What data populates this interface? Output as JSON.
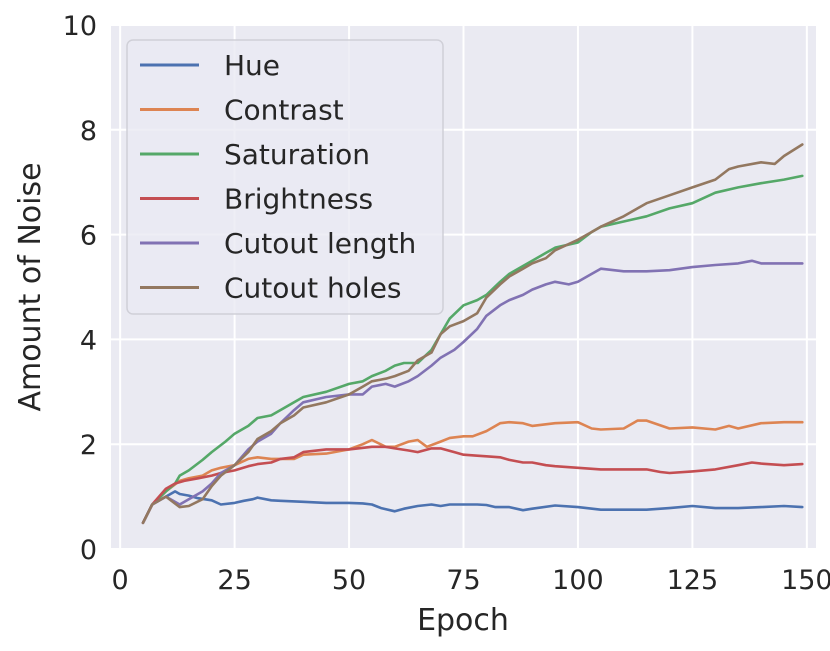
{
  "chart_data": {
    "type": "line",
    "title": "",
    "xlabel": "Epoch",
    "ylabel": "Amount of Noise",
    "xlim": [
      -2,
      152
    ],
    "ylim": [
      0,
      10
    ],
    "xticks": [
      0,
      25,
      50,
      75,
      100,
      125,
      150
    ],
    "yticks": [
      0,
      2,
      4,
      6,
      8,
      10
    ],
    "xtick_labels": [
      "0",
      "25",
      "50",
      "75",
      "100",
      "125",
      "150"
    ],
    "ytick_labels": [
      "0",
      "2",
      "4",
      "6",
      "8",
      "10"
    ],
    "grid": true,
    "background": "#eaeaf2",
    "legend_position": "top-left",
    "series": [
      {
        "name": "Hue",
        "color": "#4c72b0",
        "points": [
          [
            5,
            0.5
          ],
          [
            7,
            0.85
          ],
          [
            10,
            1.0
          ],
          [
            12,
            1.1
          ],
          [
            13,
            1.05
          ],
          [
            15,
            1.02
          ],
          [
            17,
            0.97
          ],
          [
            20,
            0.93
          ],
          [
            22,
            0.85
          ],
          [
            25,
            0.88
          ],
          [
            27,
            0.92
          ],
          [
            29,
            0.95
          ],
          [
            30,
            0.98
          ],
          [
            33,
            0.93
          ],
          [
            35,
            0.92
          ],
          [
            40,
            0.9
          ],
          [
            45,
            0.88
          ],
          [
            50,
            0.88
          ],
          [
            53,
            0.87
          ],
          [
            55,
            0.85
          ],
          [
            57,
            0.78
          ],
          [
            60,
            0.72
          ],
          [
            62,
            0.77
          ],
          [
            65,
            0.82
          ],
          [
            68,
            0.85
          ],
          [
            70,
            0.82
          ],
          [
            72,
            0.85
          ],
          [
            75,
            0.85
          ],
          [
            78,
            0.85
          ],
          [
            80,
            0.84
          ],
          [
            82,
            0.8
          ],
          [
            85,
            0.8
          ],
          [
            88,
            0.74
          ],
          [
            90,
            0.77
          ],
          [
            95,
            0.83
          ],
          [
            100,
            0.8
          ],
          [
            105,
            0.75
          ],
          [
            110,
            0.75
          ],
          [
            115,
            0.75
          ],
          [
            120,
            0.78
          ],
          [
            125,
            0.82
          ],
          [
            130,
            0.78
          ],
          [
            135,
            0.78
          ],
          [
            140,
            0.8
          ],
          [
            145,
            0.82
          ],
          [
            149,
            0.8
          ]
        ]
      },
      {
        "name": "Contrast",
        "color": "#dd8452",
        "points": [
          [
            5,
            0.5
          ],
          [
            7,
            0.85
          ],
          [
            10,
            1.1
          ],
          [
            13,
            1.3
          ],
          [
            15,
            1.35
          ],
          [
            18,
            1.4
          ],
          [
            20,
            1.5
          ],
          [
            22,
            1.55
          ],
          [
            25,
            1.6
          ],
          [
            28,
            1.72
          ],
          [
            30,
            1.75
          ],
          [
            33,
            1.72
          ],
          [
            35,
            1.72
          ],
          [
            38,
            1.72
          ],
          [
            40,
            1.8
          ],
          [
            45,
            1.82
          ],
          [
            50,
            1.9
          ],
          [
            53,
            2.0
          ],
          [
            55,
            2.08
          ],
          [
            58,
            1.95
          ],
          [
            60,
            1.95
          ],
          [
            63,
            2.05
          ],
          [
            65,
            2.08
          ],
          [
            67,
            1.95
          ],
          [
            70,
            2.05
          ],
          [
            72,
            2.12
          ],
          [
            75,
            2.15
          ],
          [
            77,
            2.15
          ],
          [
            80,
            2.25
          ],
          [
            83,
            2.4
          ],
          [
            85,
            2.42
          ],
          [
            88,
            2.4
          ],
          [
            90,
            2.35
          ],
          [
            95,
            2.4
          ],
          [
            100,
            2.42
          ],
          [
            103,
            2.3
          ],
          [
            105,
            2.28
          ],
          [
            110,
            2.3
          ],
          [
            113,
            2.45
          ],
          [
            115,
            2.45
          ],
          [
            120,
            2.3
          ],
          [
            125,
            2.32
          ],
          [
            130,
            2.28
          ],
          [
            133,
            2.35
          ],
          [
            135,
            2.3
          ],
          [
            140,
            2.4
          ],
          [
            145,
            2.42
          ],
          [
            149,
            2.42
          ]
        ]
      },
      {
        "name": "Saturation",
        "color": "#55a868",
        "points": [
          [
            5,
            0.5
          ],
          [
            7,
            0.85
          ],
          [
            10,
            1.1
          ],
          [
            12,
            1.25
          ],
          [
            13,
            1.4
          ],
          [
            15,
            1.5
          ],
          [
            18,
            1.7
          ],
          [
            20,
            1.85
          ],
          [
            23,
            2.05
          ],
          [
            25,
            2.2
          ],
          [
            28,
            2.35
          ],
          [
            30,
            2.5
          ],
          [
            33,
            2.55
          ],
          [
            35,
            2.65
          ],
          [
            38,
            2.8
          ],
          [
            40,
            2.9
          ],
          [
            45,
            3.0
          ],
          [
            50,
            3.15
          ],
          [
            53,
            3.2
          ],
          [
            55,
            3.3
          ],
          [
            58,
            3.4
          ],
          [
            60,
            3.5
          ],
          [
            62,
            3.55
          ],
          [
            65,
            3.55
          ],
          [
            68,
            3.8
          ],
          [
            70,
            4.1
          ],
          [
            72,
            4.4
          ],
          [
            75,
            4.65
          ],
          [
            78,
            4.75
          ],
          [
            80,
            4.85
          ],
          [
            83,
            5.1
          ],
          [
            85,
            5.25
          ],
          [
            88,
            5.4
          ],
          [
            90,
            5.5
          ],
          [
            93,
            5.65
          ],
          [
            95,
            5.75
          ],
          [
            100,
            5.85
          ],
          [
            103,
            6.05
          ],
          [
            105,
            6.15
          ],
          [
            110,
            6.25
          ],
          [
            115,
            6.35
          ],
          [
            120,
            6.5
          ],
          [
            125,
            6.6
          ],
          [
            130,
            6.8
          ],
          [
            135,
            6.9
          ],
          [
            140,
            6.98
          ],
          [
            145,
            7.05
          ],
          [
            149,
            7.12
          ]
        ]
      },
      {
        "name": "Brightness",
        "color": "#c44e52",
        "points": [
          [
            5,
            0.5
          ],
          [
            7,
            0.85
          ],
          [
            10,
            1.15
          ],
          [
            12,
            1.25
          ],
          [
            14,
            1.3
          ],
          [
            17,
            1.35
          ],
          [
            20,
            1.4
          ],
          [
            22,
            1.45
          ],
          [
            25,
            1.5
          ],
          [
            28,
            1.58
          ],
          [
            30,
            1.62
          ],
          [
            33,
            1.65
          ],
          [
            35,
            1.72
          ],
          [
            38,
            1.75
          ],
          [
            40,
            1.85
          ],
          [
            45,
            1.9
          ],
          [
            50,
            1.9
          ],
          [
            55,
            1.95
          ],
          [
            58,
            1.95
          ],
          [
            60,
            1.92
          ],
          [
            63,
            1.88
          ],
          [
            65,
            1.85
          ],
          [
            68,
            1.92
          ],
          [
            70,
            1.92
          ],
          [
            73,
            1.85
          ],
          [
            75,
            1.8
          ],
          [
            78,
            1.78
          ],
          [
            80,
            1.77
          ],
          [
            83,
            1.75
          ],
          [
            85,
            1.7
          ],
          [
            88,
            1.65
          ],
          [
            90,
            1.65
          ],
          [
            93,
            1.6
          ],
          [
            95,
            1.58
          ],
          [
            100,
            1.55
          ],
          [
            105,
            1.52
          ],
          [
            110,
            1.52
          ],
          [
            115,
            1.52
          ],
          [
            118,
            1.47
          ],
          [
            120,
            1.45
          ],
          [
            125,
            1.48
          ],
          [
            130,
            1.52
          ],
          [
            135,
            1.6
          ],
          [
            138,
            1.65
          ],
          [
            140,
            1.63
          ],
          [
            145,
            1.6
          ],
          [
            149,
            1.62
          ]
        ]
      },
      {
        "name": "Cutout length",
        "color": "#8172b3",
        "points": [
          [
            5,
            0.5
          ],
          [
            7,
            0.85
          ],
          [
            10,
            1.0
          ],
          [
            13,
            0.85
          ],
          [
            15,
            0.95
          ],
          [
            18,
            1.1
          ],
          [
            20,
            1.25
          ],
          [
            22,
            1.45
          ],
          [
            25,
            1.6
          ],
          [
            28,
            1.9
          ],
          [
            30,
            2.05
          ],
          [
            33,
            2.2
          ],
          [
            35,
            2.4
          ],
          [
            38,
            2.65
          ],
          [
            40,
            2.8
          ],
          [
            45,
            2.9
          ],
          [
            50,
            2.95
          ],
          [
            53,
            2.95
          ],
          [
            55,
            3.1
          ],
          [
            58,
            3.15
          ],
          [
            60,
            3.1
          ],
          [
            63,
            3.2
          ],
          [
            65,
            3.3
          ],
          [
            68,
            3.5
          ],
          [
            70,
            3.65
          ],
          [
            73,
            3.8
          ],
          [
            75,
            3.95
          ],
          [
            78,
            4.2
          ],
          [
            80,
            4.45
          ],
          [
            83,
            4.65
          ],
          [
            85,
            4.75
          ],
          [
            88,
            4.85
          ],
          [
            90,
            4.95
          ],
          [
            93,
            5.05
          ],
          [
            95,
            5.1
          ],
          [
            98,
            5.05
          ],
          [
            100,
            5.1
          ],
          [
            103,
            5.25
          ],
          [
            105,
            5.35
          ],
          [
            110,
            5.3
          ],
          [
            115,
            5.3
          ],
          [
            120,
            5.32
          ],
          [
            125,
            5.38
          ],
          [
            130,
            5.42
          ],
          [
            135,
            5.45
          ],
          [
            138,
            5.5
          ],
          [
            140,
            5.45
          ],
          [
            145,
            5.45
          ],
          [
            149,
            5.45
          ]
        ]
      },
      {
        "name": "Cutout holes",
        "color": "#937860",
        "points": [
          [
            5,
            0.5
          ],
          [
            7,
            0.85
          ],
          [
            10,
            1.0
          ],
          [
            13,
            0.8
          ],
          [
            15,
            0.82
          ],
          [
            18,
            0.95
          ],
          [
            20,
            1.2
          ],
          [
            22,
            1.4
          ],
          [
            25,
            1.6
          ],
          [
            28,
            1.85
          ],
          [
            30,
            2.1
          ],
          [
            33,
            2.25
          ],
          [
            35,
            2.4
          ],
          [
            38,
            2.55
          ],
          [
            40,
            2.7
          ],
          [
            45,
            2.8
          ],
          [
            50,
            2.95
          ],
          [
            53,
            3.1
          ],
          [
            55,
            3.2
          ],
          [
            58,
            3.25
          ],
          [
            60,
            3.3
          ],
          [
            63,
            3.4
          ],
          [
            65,
            3.6
          ],
          [
            68,
            3.75
          ],
          [
            70,
            4.1
          ],
          [
            72,
            4.25
          ],
          [
            75,
            4.35
          ],
          [
            78,
            4.5
          ],
          [
            80,
            4.8
          ],
          [
            83,
            5.05
          ],
          [
            85,
            5.2
          ],
          [
            88,
            5.35
          ],
          [
            90,
            5.45
          ],
          [
            93,
            5.55
          ],
          [
            95,
            5.7
          ],
          [
            100,
            5.9
          ],
          [
            103,
            6.05
          ],
          [
            105,
            6.15
          ],
          [
            110,
            6.35
          ],
          [
            113,
            6.5
          ],
          [
            115,
            6.6
          ],
          [
            120,
            6.75
          ],
          [
            125,
            6.9
          ],
          [
            130,
            7.05
          ],
          [
            133,
            7.25
          ],
          [
            135,
            7.3
          ],
          [
            140,
            7.38
          ],
          [
            143,
            7.35
          ],
          [
            145,
            7.5
          ],
          [
            149,
            7.72
          ]
        ]
      }
    ]
  }
}
